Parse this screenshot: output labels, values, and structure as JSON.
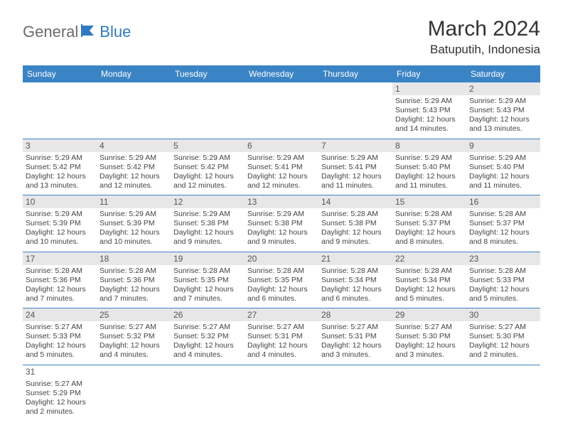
{
  "brand": {
    "part1": "General",
    "part2": "Blue"
  },
  "title": "March 2024",
  "location": "Batuputih, Indonesia",
  "header_bg": "#3a84c5",
  "daynames": [
    "Sunday",
    "Monday",
    "Tuesday",
    "Wednesday",
    "Thursday",
    "Friday",
    "Saturday"
  ],
  "weeks": [
    [
      null,
      null,
      null,
      null,
      null,
      {
        "n": "1",
        "sr": "5:29 AM",
        "ss": "5:43 PM",
        "dl": "12 hours and 14 minutes."
      },
      {
        "n": "2",
        "sr": "5:29 AM",
        "ss": "5:43 PM",
        "dl": "12 hours and 13 minutes."
      }
    ],
    [
      {
        "n": "3",
        "sr": "5:29 AM",
        "ss": "5:42 PM",
        "dl": "12 hours and 13 minutes."
      },
      {
        "n": "4",
        "sr": "5:29 AM",
        "ss": "5:42 PM",
        "dl": "12 hours and 12 minutes."
      },
      {
        "n": "5",
        "sr": "5:29 AM",
        "ss": "5:42 PM",
        "dl": "12 hours and 12 minutes."
      },
      {
        "n": "6",
        "sr": "5:29 AM",
        "ss": "5:41 PM",
        "dl": "12 hours and 12 minutes."
      },
      {
        "n": "7",
        "sr": "5:29 AM",
        "ss": "5:41 PM",
        "dl": "12 hours and 11 minutes."
      },
      {
        "n": "8",
        "sr": "5:29 AM",
        "ss": "5:40 PM",
        "dl": "12 hours and 11 minutes."
      },
      {
        "n": "9",
        "sr": "5:29 AM",
        "ss": "5:40 PM",
        "dl": "12 hours and 11 minutes."
      }
    ],
    [
      {
        "n": "10",
        "sr": "5:29 AM",
        "ss": "5:39 PM",
        "dl": "12 hours and 10 minutes."
      },
      {
        "n": "11",
        "sr": "5:29 AM",
        "ss": "5:39 PM",
        "dl": "12 hours and 10 minutes."
      },
      {
        "n": "12",
        "sr": "5:29 AM",
        "ss": "5:38 PM",
        "dl": "12 hours and 9 minutes."
      },
      {
        "n": "13",
        "sr": "5:29 AM",
        "ss": "5:38 PM",
        "dl": "12 hours and 9 minutes."
      },
      {
        "n": "14",
        "sr": "5:28 AM",
        "ss": "5:38 PM",
        "dl": "12 hours and 9 minutes."
      },
      {
        "n": "15",
        "sr": "5:28 AM",
        "ss": "5:37 PM",
        "dl": "12 hours and 8 minutes."
      },
      {
        "n": "16",
        "sr": "5:28 AM",
        "ss": "5:37 PM",
        "dl": "12 hours and 8 minutes."
      }
    ],
    [
      {
        "n": "17",
        "sr": "5:28 AM",
        "ss": "5:36 PM",
        "dl": "12 hours and 7 minutes."
      },
      {
        "n": "18",
        "sr": "5:28 AM",
        "ss": "5:36 PM",
        "dl": "12 hours and 7 minutes."
      },
      {
        "n": "19",
        "sr": "5:28 AM",
        "ss": "5:35 PM",
        "dl": "12 hours and 7 minutes."
      },
      {
        "n": "20",
        "sr": "5:28 AM",
        "ss": "5:35 PM",
        "dl": "12 hours and 6 minutes."
      },
      {
        "n": "21",
        "sr": "5:28 AM",
        "ss": "5:34 PM",
        "dl": "12 hours and 6 minutes."
      },
      {
        "n": "22",
        "sr": "5:28 AM",
        "ss": "5:34 PM",
        "dl": "12 hours and 5 minutes."
      },
      {
        "n": "23",
        "sr": "5:28 AM",
        "ss": "5:33 PM",
        "dl": "12 hours and 5 minutes."
      }
    ],
    [
      {
        "n": "24",
        "sr": "5:27 AM",
        "ss": "5:33 PM",
        "dl": "12 hours and 5 minutes."
      },
      {
        "n": "25",
        "sr": "5:27 AM",
        "ss": "5:32 PM",
        "dl": "12 hours and 4 minutes."
      },
      {
        "n": "26",
        "sr": "5:27 AM",
        "ss": "5:32 PM",
        "dl": "12 hours and 4 minutes."
      },
      {
        "n": "27",
        "sr": "5:27 AM",
        "ss": "5:31 PM",
        "dl": "12 hours and 4 minutes."
      },
      {
        "n": "28",
        "sr": "5:27 AM",
        "ss": "5:31 PM",
        "dl": "12 hours and 3 minutes."
      },
      {
        "n": "29",
        "sr": "5:27 AM",
        "ss": "5:30 PM",
        "dl": "12 hours and 3 minutes."
      },
      {
        "n": "30",
        "sr": "5:27 AM",
        "ss": "5:30 PM",
        "dl": "12 hours and 2 minutes."
      }
    ],
    [
      {
        "n": "31",
        "sr": "5:27 AM",
        "ss": "5:29 PM",
        "dl": "12 hours and 2 minutes."
      },
      null,
      null,
      null,
      null,
      null,
      null
    ]
  ],
  "labels": {
    "sunrise": "Sunrise: ",
    "sunset": "Sunset: ",
    "daylight": "Daylight: "
  }
}
